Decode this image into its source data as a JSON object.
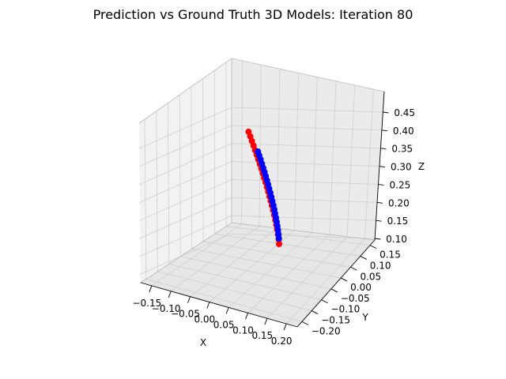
{
  "chart_data": {
    "type": "scatter3d",
    "title": "Prediction vs Ground Truth 3D Models: Iteration 80",
    "xlabel": "X",
    "ylabel": "Y",
    "zlabel": "Z",
    "xticks": [
      "−0.15",
      "−0.10",
      "−0.05",
      "0.00",
      "0.05",
      "0.10",
      "0.15",
      "0.20"
    ],
    "yticks": [
      "−0.20",
      "−0.15",
      "−0.10",
      "−0.05",
      "0.00",
      "0.05",
      "0.10",
      "0.15"
    ],
    "zticks": [
      "0.10",
      "0.15",
      "0.20",
      "0.25",
      "0.30",
      "0.35",
      "0.40",
      "0.45"
    ],
    "xlim": [
      -0.17,
      0.21
    ],
    "ylim": [
      -0.22,
      0.17
    ],
    "zlim": [
      0.09,
      0.47
    ],
    "grid": true,
    "series": [
      {
        "color": "#ff0000",
        "points": [
          [
            0.03,
            0.0,
            0.1
          ],
          [
            0.03,
            0.0,
            0.112
          ],
          [
            0.03,
            0.0,
            0.125
          ],
          [
            0.03,
            0.0,
            0.138
          ],
          [
            0.03,
            0.0,
            0.15
          ],
          [
            0.03,
            0.0,
            0.162
          ],
          [
            0.03,
            0.0,
            0.175
          ],
          [
            0.03,
            0.0,
            0.188
          ],
          [
            0.03,
            0.0,
            0.2
          ],
          [
            0.03,
            0.0,
            0.212
          ],
          [
            0.03,
            0.0,
            0.224
          ],
          [
            0.03,
            0.0,
            0.236
          ],
          [
            0.03,
            0.0,
            0.248
          ],
          [
            0.03,
            0.0,
            0.26
          ],
          [
            0.03,
            0.0,
            0.272
          ],
          [
            0.03,
            0.0,
            0.284
          ],
          [
            0.03,
            0.0,
            0.296
          ],
          [
            0.03,
            0.0,
            0.308
          ],
          [
            0.03,
            0.0,
            0.32
          ],
          [
            0.03,
            0.0,
            0.332
          ],
          [
            0.03,
            0.0,
            0.344
          ],
          [
            0.03,
            0.0,
            0.356
          ],
          [
            0.03,
            0.0,
            0.368
          ],
          [
            0.03,
            0.0,
            0.38
          ],
          [
            0.03,
            0.0,
            0.392
          ]
        ]
      },
      {
        "color": "#0000ff",
        "points": [
          [
            0.03,
            0.0,
            0.11
          ],
          [
            0.03,
            0.0,
            0.121
          ],
          [
            0.03,
            0.0,
            0.132
          ],
          [
            0.03,
            0.0,
            0.143
          ],
          [
            0.03,
            0.0,
            0.154
          ],
          [
            0.03,
            0.0,
            0.165
          ],
          [
            0.03,
            0.0,
            0.176
          ],
          [
            0.03,
            0.0,
            0.187
          ],
          [
            0.03,
            0.0,
            0.198
          ],
          [
            0.03,
            0.0,
            0.209
          ],
          [
            0.03,
            0.0,
            0.22
          ],
          [
            0.03,
            0.0,
            0.231
          ],
          [
            0.03,
            0.0,
            0.242
          ],
          [
            0.03,
            0.0,
            0.253
          ],
          [
            0.03,
            0.0,
            0.264
          ],
          [
            0.03,
            0.0,
            0.275
          ],
          [
            0.03,
            0.0,
            0.286
          ],
          [
            0.03,
            0.0,
            0.297
          ],
          [
            0.03,
            0.0,
            0.308
          ],
          [
            0.03,
            0.0,
            0.319
          ],
          [
            0.03,
            0.0,
            0.33
          ],
          [
            0.03,
            0.0,
            0.34
          ]
        ]
      }
    ]
  }
}
